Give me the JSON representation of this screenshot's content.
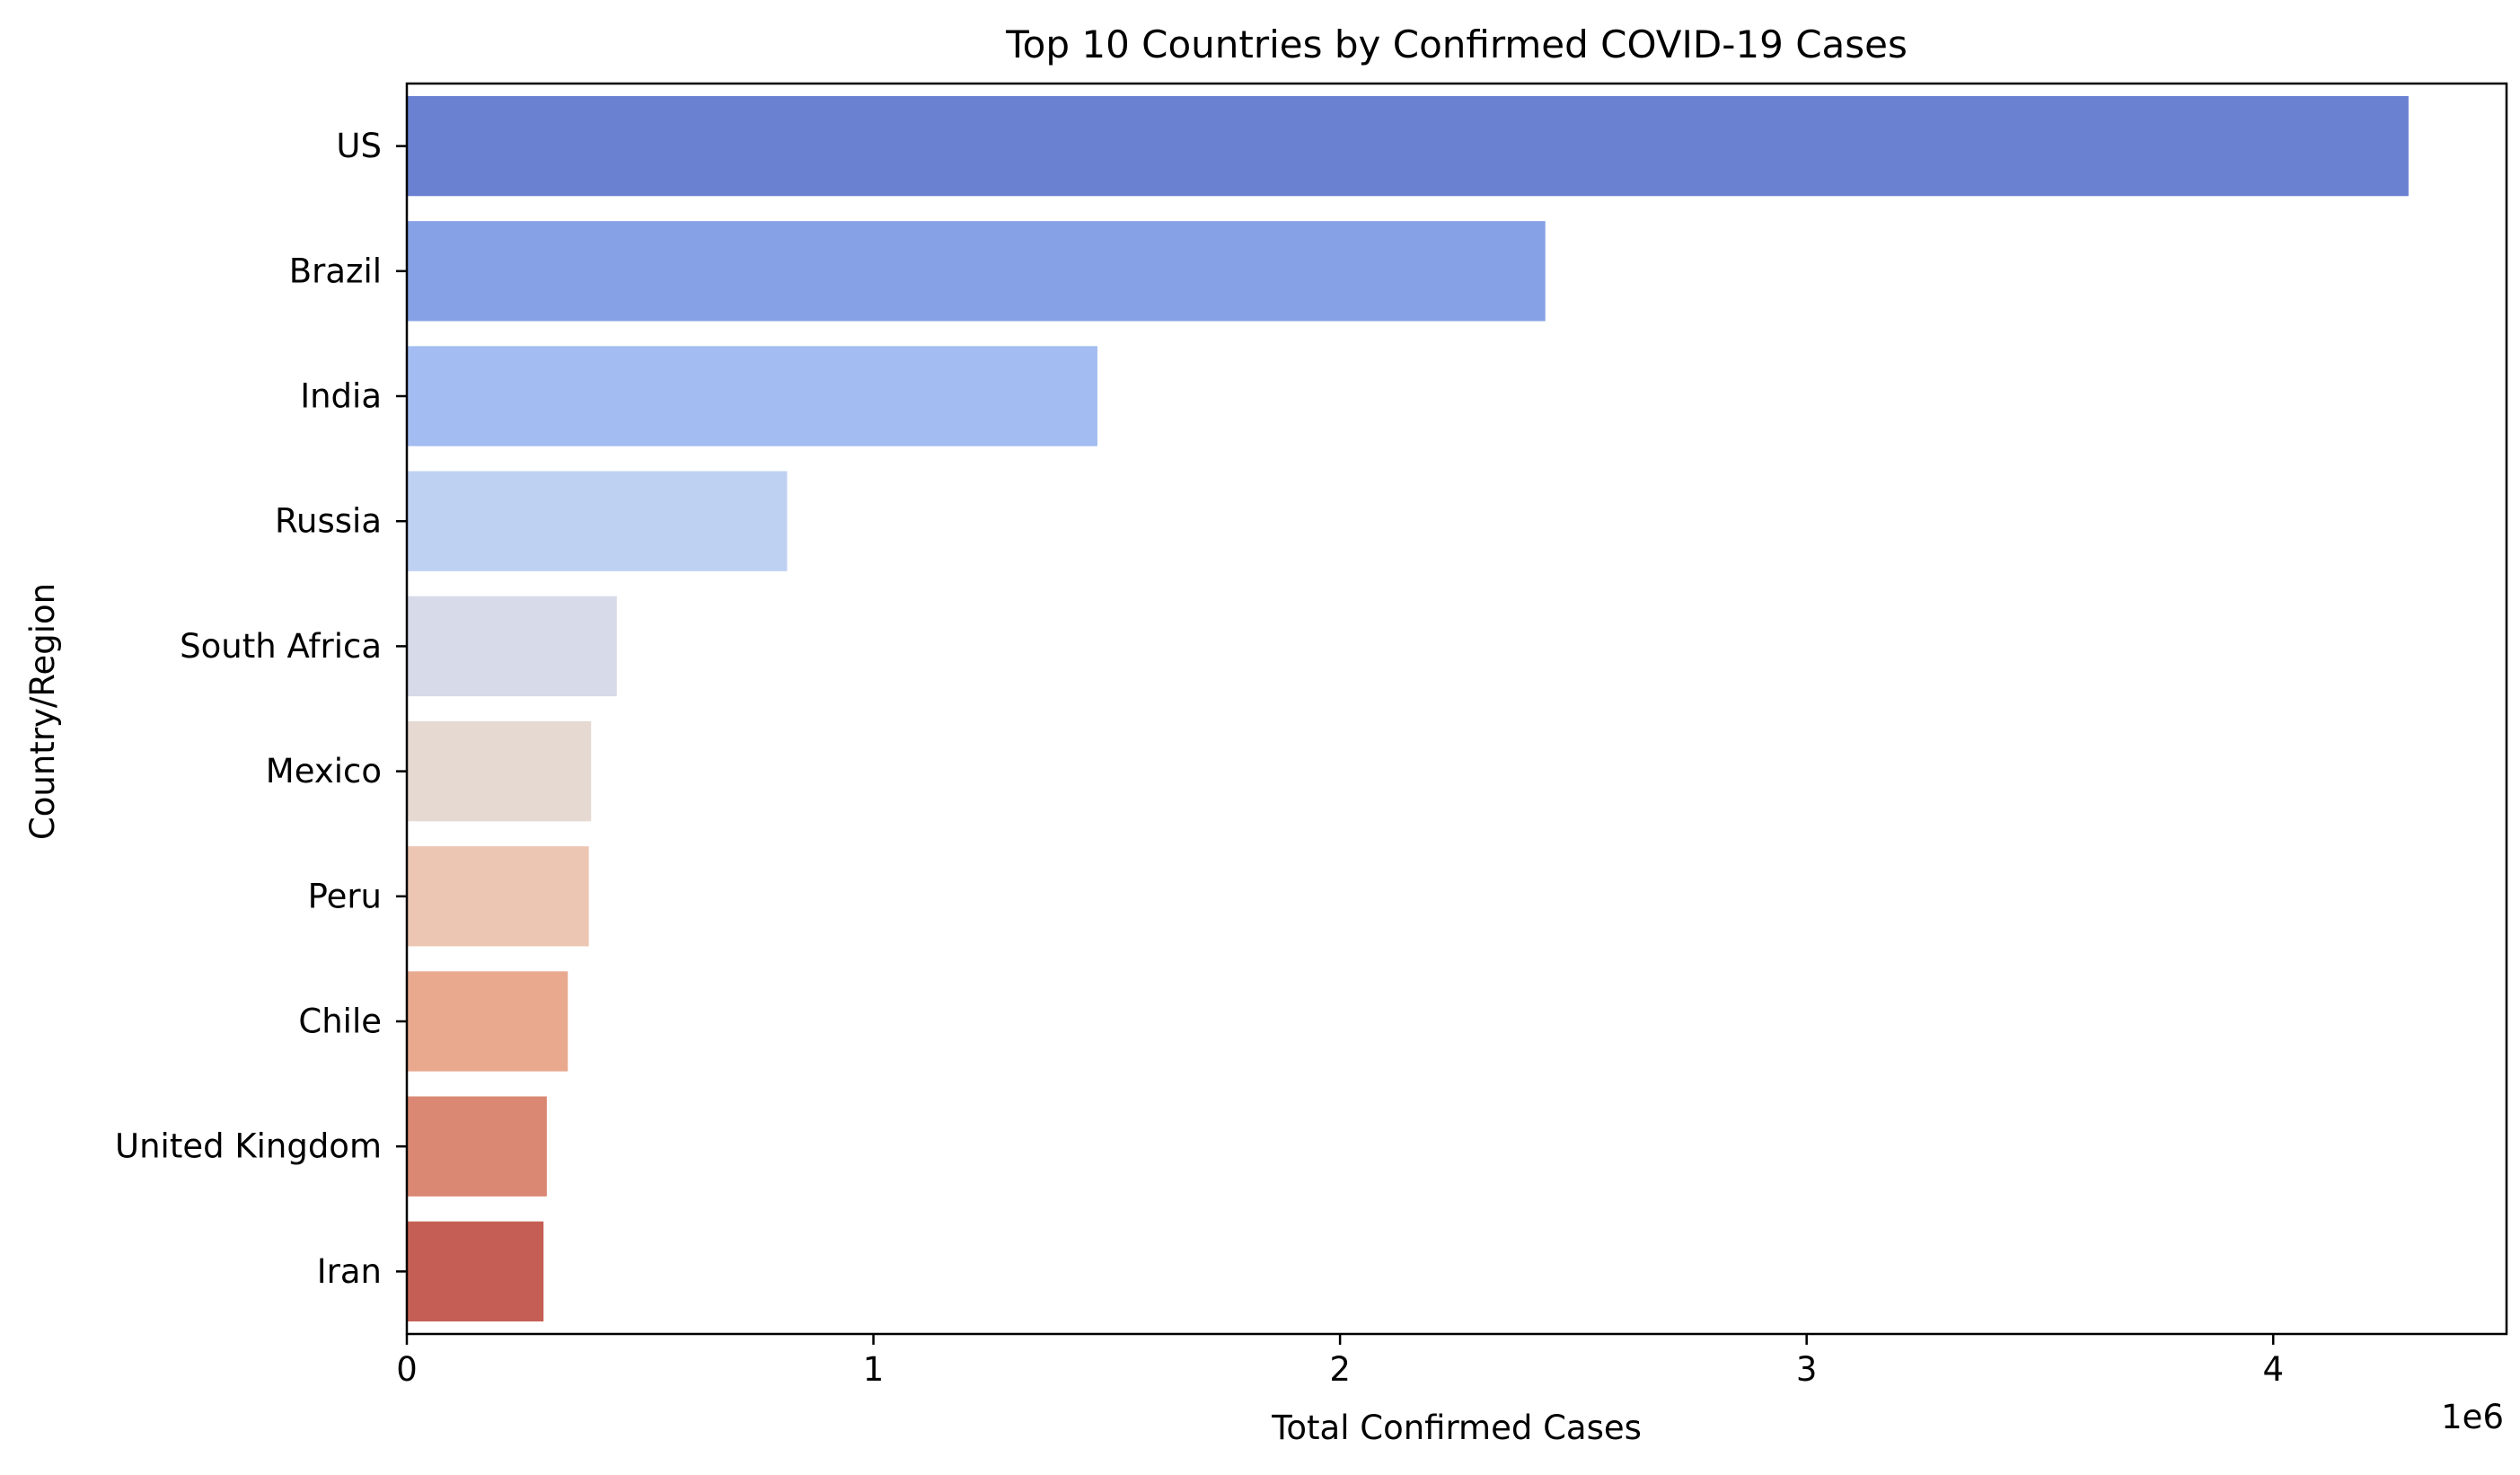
{
  "chart_data": {
    "type": "bar",
    "orientation": "horizontal",
    "title": "Top 10 Countries by Confirmed COVID-19 Cases",
    "xlabel": "Total Confirmed Cases",
    "ylabel": "Country/Region",
    "x_offset_label": "1e6",
    "x_scale": 1000000,
    "xlim": [
      0,
      4500000
    ],
    "x_ticks": [
      {
        "value": 0,
        "label": "0"
      },
      {
        "value": 1000000,
        "label": "1"
      },
      {
        "value": 2000000,
        "label": "2"
      },
      {
        "value": 3000000,
        "label": "3"
      },
      {
        "value": 4000000,
        "label": "4"
      }
    ],
    "grid": false,
    "legend": "none",
    "categories": [
      "US",
      "Brazil",
      "India",
      "Russia",
      "South Africa",
      "Mexico",
      "Peru",
      "Chile",
      "United Kingdom",
      "Iran"
    ],
    "values": [
      4290000,
      2440000,
      1480000,
      815000,
      450000,
      395000,
      390000,
      345000,
      300000,
      293000
    ],
    "colors": [
      "#6a80d0",
      "#86a1e5",
      "#a3bdf2",
      "#bfd1f2",
      "#d7dae8",
      "#e5d9d2",
      "#ecc6b3",
      "#e8a98f",
      "#da8873",
      "#c55f55"
    ]
  }
}
